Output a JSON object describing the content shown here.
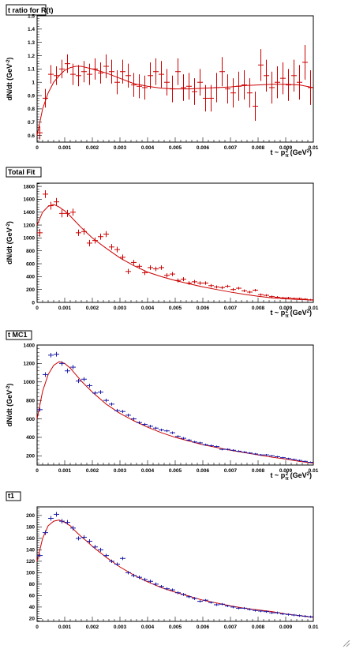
{
  "chart_data": [
    {
      "type": "scatter",
      "title": "t ratio for R(t)",
      "xlabel": "t ~ p",
      "xlabel_sub": "π",
      "xlabel_sup": "2",
      "xlabel_unit": " (GeV",
      "xlabel_unit_sup": "2",
      "xlabel_close": ")",
      "ylabel": "dN/dt (GeV",
      "ylabel_sup": "-2",
      "ylabel_close": ")",
      "xlim": [
        0,
        0.01
      ],
      "ylim": [
        0.55,
        1.5
      ],
      "xticks": [
        "0.001",
        "0.002",
        "0.003",
        "0.004",
        "0.005",
        "0.006",
        "0.007",
        "0.008",
        "0.009",
        "0.01"
      ],
      "xtick_values": [
        0.001,
        0.002,
        0.003,
        0.004,
        0.005,
        0.006,
        0.007,
        0.008,
        0.009,
        0.01
      ],
      "yticks": [
        "0.6",
        "0.7",
        "0.8",
        "0.9",
        "1",
        "1.1",
        "1.2",
        "1.3",
        "1.4",
        "1.5"
      ],
      "ytick_values": [
        0.6,
        0.7,
        0.8,
        0.9,
        1.0,
        1.1,
        1.2,
        1.3,
        1.4,
        1.5
      ],
      "x0label": "0",
      "marker_color": "#cc0000",
      "fit_color": "#cc0000",
      "x": [
        0.0001,
        0.0003,
        0.0005,
        0.0007,
        0.0009,
        0.0011,
        0.0013,
        0.0015,
        0.0017,
        0.0019,
        0.0021,
        0.0023,
        0.0025,
        0.0027,
        0.0029,
        0.0031,
        0.0033,
        0.0035,
        0.0037,
        0.0039,
        0.0041,
        0.0043,
        0.0045,
        0.0047,
        0.0049,
        0.0051,
        0.0053,
        0.0055,
        0.0057,
        0.0059,
        0.0061,
        0.0063,
        0.0065,
        0.0067,
        0.0069,
        0.0071,
        0.0073,
        0.0075,
        0.0077,
        0.0079,
        0.0081,
        0.0083,
        0.0085,
        0.0087,
        0.0089,
        0.0091,
        0.0093,
        0.0095,
        0.0097,
        0.0099
      ],
      "y": [
        0.62,
        0.88,
        1.06,
        1.05,
        1.1,
        1.14,
        1.06,
        1.05,
        1.08,
        1.06,
        1.1,
        1.07,
        1.12,
        1.08,
        1.0,
        1.08,
        1.05,
        0.98,
        0.97,
        0.96,
        1.05,
        1.08,
        1.06,
        1.0,
        0.95,
        1.08,
        0.96,
        0.97,
        0.93,
        1.0,
        0.88,
        0.88,
        0.96,
        1.08,
        0.95,
        0.92,
        0.97,
        0.98,
        0.92,
        0.82,
        1.13,
        1.05,
        0.96,
        1.0,
        1.03,
        0.98,
        1.05,
        1.0,
        1.15,
        0.96
      ],
      "yerr": [
        0.05,
        0.07,
        0.07,
        0.07,
        0.07,
        0.07,
        0.08,
        0.08,
        0.08,
        0.08,
        0.08,
        0.08,
        0.09,
        0.09,
        0.09,
        0.09,
        0.09,
        0.09,
        0.09,
        0.09,
        0.1,
        0.1,
        0.1,
        0.1,
        0.1,
        0.1,
        0.1,
        0.1,
        0.1,
        0.1,
        0.1,
        0.1,
        0.11,
        0.11,
        0.11,
        0.11,
        0.11,
        0.11,
        0.11,
        0.11,
        0.12,
        0.12,
        0.12,
        0.12,
        0.12,
        0.12,
        0.12,
        0.13,
        0.13,
        0.13
      ],
      "fit_x": [
        0.0,
        0.0002,
        0.0004,
        0.0006,
        0.0008,
        0.001,
        0.0012,
        0.0014,
        0.0016,
        0.0018,
        0.002,
        0.0025,
        0.003,
        0.0035,
        0.004,
        0.0045,
        0.005,
        0.0055,
        0.006,
        0.0065,
        0.007,
        0.0075,
        0.008,
        0.0085,
        0.009,
        0.0095,
        0.01
      ],
      "fit_y": [
        0.6,
        0.8,
        0.92,
        1.0,
        1.05,
        1.09,
        1.11,
        1.12,
        1.12,
        1.11,
        1.1,
        1.07,
        1.03,
        0.99,
        0.97,
        0.955,
        0.95,
        0.95,
        0.955,
        0.96,
        0.965,
        0.975,
        0.98,
        0.985,
        0.985,
        0.98,
        0.96
      ]
    },
    {
      "type": "scatter",
      "title": "Total Fit",
      "xlabel": "t ~ p",
      "xlabel_sub": "π",
      "xlabel_sup": "2",
      "xlabel_unit": " (GeV",
      "xlabel_unit_sup": "2",
      "xlabel_close": ")",
      "ylabel": "dN/dt (GeV",
      "ylabel_sup": "-2",
      "ylabel_close": ")",
      "xlim": [
        0,
        0.01
      ],
      "ylim": [
        0,
        1850
      ],
      "xticks": [
        "0.001",
        "0.002",
        "0.003",
        "0.004",
        "0.005",
        "0.006",
        "0.007",
        "0.008",
        "0.009",
        "0.01"
      ],
      "xtick_values": [
        0.001,
        0.002,
        0.003,
        0.004,
        0.005,
        0.006,
        0.007,
        0.008,
        0.009,
        0.01
      ],
      "yticks": [
        "0",
        "200",
        "400",
        "600",
        "800",
        "1000",
        "1200",
        "1400",
        "1600",
        "1800"
      ],
      "ytick_values": [
        0,
        200,
        400,
        600,
        800,
        1000,
        1200,
        1400,
        1600,
        1800
      ],
      "x0label": "0",
      "marker_color": "#cc0000",
      "fit_color": "#cc0000",
      "x": [
        0.0001,
        0.0003,
        0.0005,
        0.0007,
        0.0009,
        0.0011,
        0.0013,
        0.0015,
        0.0017,
        0.0019,
        0.0021,
        0.0023,
        0.0025,
        0.0027,
        0.0029,
        0.0031,
        0.0033,
        0.0035,
        0.0037,
        0.0039,
        0.0041,
        0.0043,
        0.0045,
        0.0047,
        0.0049,
        0.0051,
        0.0053,
        0.0055,
        0.0057,
        0.0059,
        0.0061,
        0.0063,
        0.0065,
        0.0067,
        0.0069,
        0.0071,
        0.0073,
        0.0075,
        0.0077,
        0.0079,
        0.0081,
        0.0083,
        0.0085,
        0.0087,
        0.0089,
        0.0091,
        0.0093,
        0.0095,
        0.0097,
        0.0099
      ],
      "y": [
        1080,
        1680,
        1500,
        1560,
        1380,
        1380,
        1400,
        1080,
        1100,
        920,
        960,
        1020,
        1060,
        860,
        820,
        700,
        480,
        620,
        560,
        460,
        540,
        520,
        540,
        420,
        440,
        340,
        360,
        300,
        320,
        300,
        300,
        260,
        240,
        230,
        250,
        200,
        220,
        180,
        160,
        190,
        120,
        110,
        90,
        80,
        70,
        70,
        60,
        60,
        50,
        40
      ],
      "yerr": [
        60,
        60,
        60,
        60,
        60,
        55,
        55,
        50,
        50,
        50,
        48,
        48,
        46,
        45,
        44,
        42,
        40,
        40,
        38,
        36,
        36,
        35,
        34,
        32,
        32,
        30,
        30,
        28,
        28,
        27,
        26,
        25,
        24,
        23,
        22,
        22,
        21,
        20,
        20,
        19,
        18,
        17,
        17,
        16,
        16,
        15,
        15,
        14,
        14,
        13
      ],
      "fit_x": [
        0.0,
        0.0002,
        0.0004,
        0.0006,
        0.0008,
        0.001,
        0.0012,
        0.0014,
        0.0016,
        0.0018,
        0.002,
        0.0025,
        0.003,
        0.0035,
        0.004,
        0.0045,
        0.005,
        0.0055,
        0.006,
        0.0065,
        0.007,
        0.0075,
        0.008,
        0.0085,
        0.009,
        0.0095,
        0.01
      ],
      "fit_y": [
        1200,
        1400,
        1490,
        1520,
        1480,
        1420,
        1340,
        1250,
        1160,
        1080,
        1000,
        840,
        690,
        570,
        470,
        400,
        340,
        290,
        240,
        200,
        160,
        125,
        95,
        70,
        55,
        45,
        35
      ]
    },
    {
      "type": "scatter",
      "title": "t MC1",
      "xlabel": "t ~ p",
      "xlabel_sub": "π",
      "xlabel_sup": "2",
      "xlabel_unit": " (GeV",
      "xlabel_unit_sup": "2",
      "xlabel_close": ")",
      "ylabel": "dN/dt (GeV",
      "ylabel_sup": "-2",
      "ylabel_close": ")",
      "xlim": [
        0,
        0.01
      ],
      "ylim": [
        100,
        1400
      ],
      "xticks": [
        "0.001",
        "0.002",
        "0.003",
        "0.004",
        "0.005",
        "0.006",
        "0.007",
        "0.008",
        "0.009",
        "0.01"
      ],
      "xtick_values": [
        0.001,
        0.002,
        0.003,
        0.004,
        0.005,
        0.006,
        0.007,
        0.008,
        0.009,
        0.01
      ],
      "yticks": [
        "200",
        "400",
        "600",
        "800",
        "1000",
        "1200",
        "1400"
      ],
      "ytick_values": [
        200,
        400,
        600,
        800,
        1000,
        1200,
        1400
      ],
      "x0label": "0",
      "marker_color": "#1a1aa6",
      "fit_color": "#cc0000",
      "x": [
        0.0001,
        0.0003,
        0.0005,
        0.0007,
        0.0009,
        0.0011,
        0.0013,
        0.0015,
        0.0017,
        0.0019,
        0.0021,
        0.0023,
        0.0025,
        0.0027,
        0.0029,
        0.0031,
        0.0033,
        0.0035,
        0.0037,
        0.0039,
        0.0041,
        0.0043,
        0.0045,
        0.0047,
        0.0049,
        0.0051,
        0.0053,
        0.0055,
        0.0057,
        0.0059,
        0.0061,
        0.0063,
        0.0065,
        0.0067,
        0.0069,
        0.0071,
        0.0073,
        0.0075,
        0.0077,
        0.0079,
        0.0081,
        0.0083,
        0.0085,
        0.0087,
        0.0089,
        0.0091,
        0.0093,
        0.0095,
        0.0097,
        0.0099
      ],
      "y": [
        700,
        1080,
        1290,
        1300,
        1200,
        1120,
        1160,
        1010,
        1030,
        960,
        880,
        890,
        800,
        760,
        690,
        680,
        640,
        600,
        560,
        540,
        520,
        500,
        480,
        470,
        450,
        410,
        390,
        370,
        350,
        340,
        320,
        310,
        300,
        270,
        270,
        260,
        250,
        240,
        230,
        220,
        210,
        210,
        200,
        190,
        180,
        170,
        160,
        150,
        140,
        130
      ],
      "yerr": [
        20,
        25,
        25,
        25,
        25,
        24,
        24,
        22,
        22,
        21,
        20,
        20,
        19,
        18,
        18,
        17,
        17,
        16,
        16,
        15,
        15,
        15,
        14,
        14,
        14,
        13,
        13,
        13,
        12,
        12,
        12,
        12,
        11,
        11,
        11,
        11,
        10,
        10,
        10,
        10,
        10,
        10,
        9,
        9,
        9,
        9,
        9,
        9,
        8,
        8
      ],
      "fit_x": [
        0.0,
        0.0002,
        0.0004,
        0.0006,
        0.0008,
        0.001,
        0.0012,
        0.0014,
        0.0016,
        0.0018,
        0.002,
        0.0025,
        0.003,
        0.0035,
        0.004,
        0.0045,
        0.005,
        0.0055,
        0.006,
        0.0065,
        0.007,
        0.0075,
        0.008,
        0.0085,
        0.009,
        0.0095,
        0.01
      ],
      "fit_y": [
        600,
        900,
        1080,
        1180,
        1220,
        1200,
        1150,
        1080,
        1010,
        950,
        890,
        760,
        660,
        580,
        510,
        450,
        400,
        360,
        320,
        290,
        260,
        235,
        210,
        185,
        165,
        140,
        120
      ]
    },
    {
      "type": "scatter",
      "title": "t1",
      "xlabel": "",
      "ylabel": "",
      "xlim": [
        0,
        0.01
      ],
      "ylim": [
        15,
        215
      ],
      "xticks": [
        "0.001",
        "0.002",
        "0.003",
        "0.004",
        "0.005",
        "0.006",
        "0.007",
        "0.008",
        "0.009",
        "0.01"
      ],
      "xtick_values": [
        0.001,
        0.002,
        0.003,
        0.004,
        0.005,
        0.006,
        0.007,
        0.008,
        0.009,
        0.01
      ],
      "yticks": [
        "20",
        "40",
        "60",
        "80",
        "100",
        "120",
        "140",
        "160",
        "180",
        "200"
      ],
      "ytick_values": [
        20,
        40,
        60,
        80,
        100,
        120,
        140,
        160,
        180,
        200
      ],
      "x0label": "0",
      "marker_color": "#1a1aa6",
      "fit_color": "#cc0000",
      "x": [
        0.0001,
        0.0003,
        0.0005,
        0.0007,
        0.0009,
        0.0011,
        0.0013,
        0.0015,
        0.0017,
        0.0019,
        0.0021,
        0.0023,
        0.0025,
        0.0027,
        0.0029,
        0.0031,
        0.0033,
        0.0035,
        0.0037,
        0.0039,
        0.0041,
        0.0043,
        0.0045,
        0.0047,
        0.0049,
        0.0051,
        0.0053,
        0.0055,
        0.0057,
        0.0059,
        0.0061,
        0.0063,
        0.0065,
        0.0067,
        0.0069,
        0.0071,
        0.0073,
        0.0075,
        0.0077,
        0.0079,
        0.0081,
        0.0083,
        0.0085,
        0.0087,
        0.0089,
        0.0091,
        0.0093,
        0.0095,
        0.0097,
        0.0099
      ],
      "y": [
        130,
        170,
        195,
        202,
        190,
        188,
        178,
        160,
        162,
        155,
        145,
        140,
        130,
        120,
        115,
        125,
        100,
        95,
        92,
        88,
        85,
        80,
        76,
        72,
        70,
        65,
        62,
        58,
        55,
        50,
        52,
        48,
        44,
        45,
        42,
        40,
        38,
        38,
        36,
        34,
        33,
        32,
        30,
        30,
        28,
        27,
        26,
        25,
        24,
        23
      ],
      "yerr": [
        3,
        4,
        4,
        4,
        4,
        4,
        4,
        3.5,
        3.5,
        3.5,
        3.5,
        3.5,
        3,
        3,
        3,
        3,
        3,
        3,
        3,
        3,
        3,
        3,
        2.5,
        2.5,
        2.5,
        2.5,
        2.5,
        2.5,
        2.5,
        2,
        2,
        2,
        2,
        2,
        2,
        2,
        2,
        2,
        2,
        2,
        2,
        2,
        2,
        2,
        2,
        2,
        2,
        2,
        2,
        2
      ],
      "fit_x": [
        0.0,
        0.0002,
        0.0004,
        0.0006,
        0.0008,
        0.001,
        0.0012,
        0.0014,
        0.0016,
        0.0018,
        0.002,
        0.0025,
        0.003,
        0.0035,
        0.004,
        0.0045,
        0.005,
        0.0055,
        0.006,
        0.0065,
        0.007,
        0.0075,
        0.008,
        0.0085,
        0.009,
        0.0095,
        0.01
      ],
      "fit_y": [
        120,
        160,
        182,
        190,
        192,
        188,
        182,
        172,
        163,
        155,
        146,
        127,
        110,
        96,
        84,
        74,
        66,
        59,
        52,
        47,
        42,
        38,
        35,
        32,
        28,
        25,
        22
      ]
    }
  ]
}
